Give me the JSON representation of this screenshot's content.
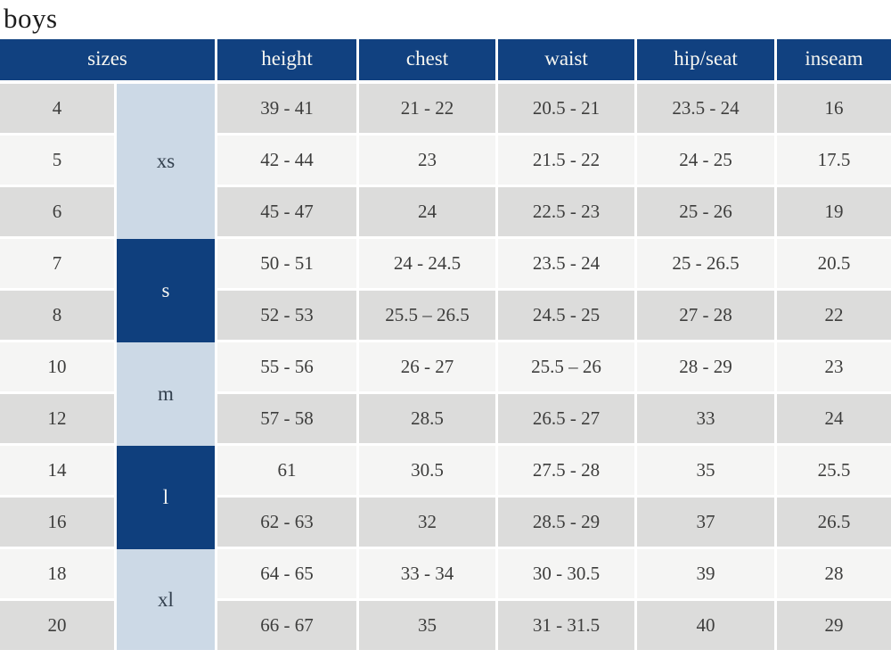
{
  "title": "boys",
  "colors": {
    "header_bg": "#114180",
    "navy_cell_bg": "#0f3f7d",
    "light_blue_cell_bg": "#ccd9e6",
    "row_gray": "#dcdcdb",
    "row_light": "#f5f5f4",
    "header_text": "#f6f6f1",
    "cell_text": "#3d3d3c",
    "title_text": "#1c1c1c"
  },
  "chart_data": {
    "type": "table",
    "title": "boys",
    "headers": [
      "sizes",
      "height",
      "chest",
      "waist",
      "hip/seat",
      "inseam"
    ],
    "columns": [
      "size",
      "height",
      "chest",
      "waist",
      "hip_seat",
      "inseam"
    ],
    "size_groups": [
      {
        "label": "xs",
        "row_span": 3,
        "variant": "light-blue"
      },
      {
        "label": "s",
        "row_span": 2,
        "variant": "navy"
      },
      {
        "label": "m",
        "row_span": 2,
        "variant": "light-blue"
      },
      {
        "label": "l",
        "row_span": 2,
        "variant": "navy"
      },
      {
        "label": "xl",
        "row_span": 2,
        "variant": "light-blue"
      }
    ],
    "rows": [
      {
        "size": "4",
        "height": "39 - 41",
        "chest": "21 - 22",
        "waist": "20.5 - 21",
        "hip_seat": "23.5 - 24",
        "inseam": "16"
      },
      {
        "size": "5",
        "height": "42 - 44",
        "chest": "23",
        "waist": "21.5 - 22",
        "hip_seat": "24 - 25",
        "inseam": "17.5"
      },
      {
        "size": "6",
        "height": "45 - 47",
        "chest": "24",
        "waist": "22.5 - 23",
        "hip_seat": "25 - 26",
        "inseam": "19"
      },
      {
        "size": "7",
        "height": "50 - 51",
        "chest": "24 - 24.5",
        "waist": "23.5 - 24",
        "hip_seat": "25 - 26.5",
        "inseam": "20.5"
      },
      {
        "size": "8",
        "height": "52 - 53",
        "chest": "25.5 – 26.5",
        "waist": "24.5 - 25",
        "hip_seat": "27 - 28",
        "inseam": "22"
      },
      {
        "size": "10",
        "height": "55 - 56",
        "chest": "26 - 27",
        "waist": "25.5 – 26",
        "hip_seat": "28 - 29",
        "inseam": "23"
      },
      {
        "size": "12",
        "height": "57 - 58",
        "chest": "28.5",
        "waist": "26.5 - 27",
        "hip_seat": "33",
        "inseam": "24"
      },
      {
        "size": "14",
        "height": "61",
        "chest": "30.5",
        "waist": "27.5 - 28",
        "hip_seat": "35",
        "inseam": "25.5"
      },
      {
        "size": "16",
        "height": "62 - 63",
        "chest": "32",
        "waist": "28.5 - 29",
        "hip_seat": "37",
        "inseam": "26.5"
      },
      {
        "size": "18",
        "height": "64 - 65",
        "chest": "33 - 34",
        "waist": "30 - 30.5",
        "hip_seat": "39",
        "inseam": "28"
      },
      {
        "size": "20",
        "height": "66 - 67",
        "chest": "35",
        "waist": "31 - 31.5",
        "hip_seat": "40",
        "inseam": "29"
      }
    ]
  }
}
